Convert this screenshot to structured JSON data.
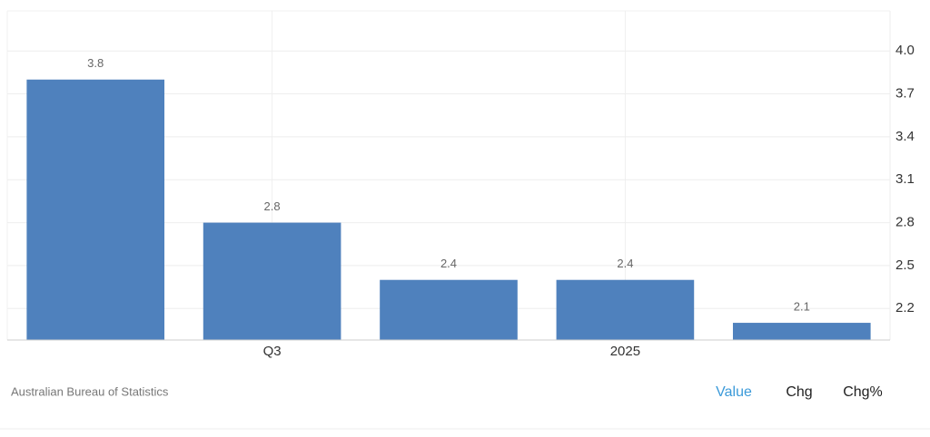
{
  "chart_data": {
    "type": "bar",
    "categories": [
      null,
      "Q3",
      null,
      "2025",
      null
    ],
    "values": [
      3.8,
      2.8,
      2.4,
      2.4,
      2.1
    ],
    "color": "#4f81bd",
    "ylim": [
      1.98,
      4.28
    ],
    "yticks": [
      2.2,
      2.5,
      2.8,
      3.1,
      3.4,
      3.7,
      {
        "value": 4,
        "label": "4.0"
      }
    ],
    "grid": true,
    "source": "Australian Bureau of Statistics",
    "tabs": [
      "Value",
      "Chg",
      "Chg%"
    ]
  }
}
